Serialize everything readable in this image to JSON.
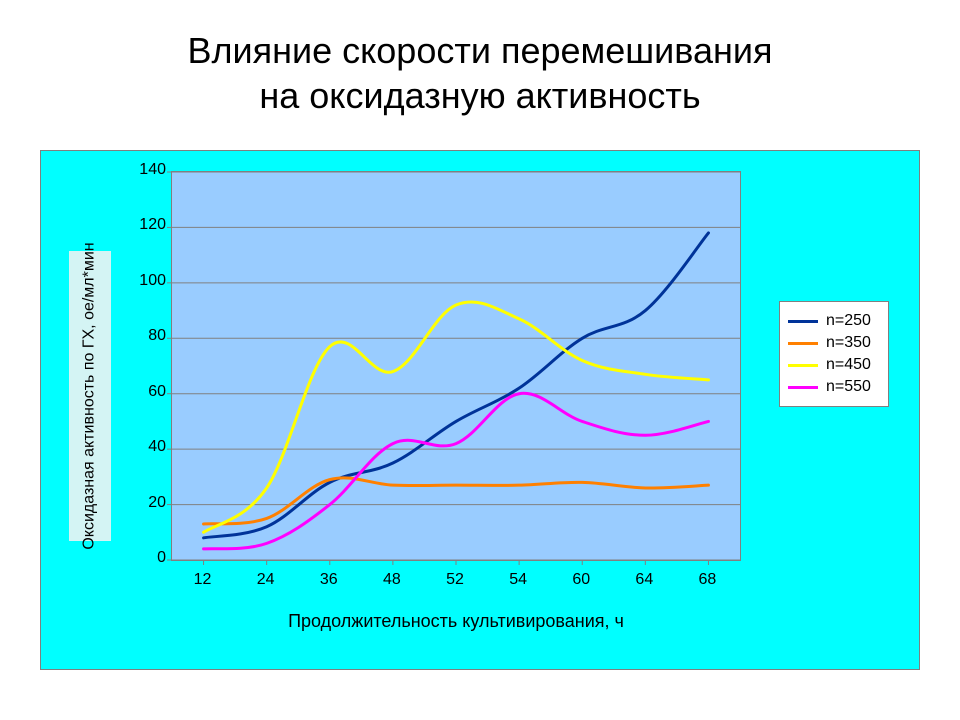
{
  "title_line1": "Влияние скорости перемешивания",
  "title_line2": "на оксидазную активность",
  "chart": {
    "type": "line",
    "background_outer": "#00ffff",
    "background_plot": "#99ccff",
    "grid_color": "#808080",
    "border_color": "#7f7f7f",
    "ylabel": "Оксидазная активность по ГХ, ое/мл*мин",
    "xlabel": "Продолжительность культивирования, ч",
    "ylim": [
      0,
      140
    ],
    "ytick_step": 20,
    "yticks": [
      0,
      20,
      40,
      60,
      80,
      100,
      120,
      140
    ],
    "x_categories": [
      "12",
      "24",
      "36",
      "48",
      "52",
      "54",
      "60",
      "64",
      "68"
    ],
    "line_width": 3,
    "series": [
      {
        "name": "n=250",
        "color": "#003399",
        "values": [
          8,
          12,
          28,
          35,
          50,
          62,
          80,
          90,
          118
        ]
      },
      {
        "name": "n=350",
        "color": "#ff8000",
        "values": [
          13,
          15,
          29,
          27,
          27,
          27,
          28,
          26,
          27
        ]
      },
      {
        "name": "n=450",
        "color": "#ffff00",
        "values": [
          10,
          26,
          77,
          68,
          92,
          87,
          72,
          67,
          65
        ]
      },
      {
        "name": "n=550",
        "color": "#ff00ff",
        "values": [
          4,
          6,
          20,
          42,
          42,
          60,
          50,
          45,
          50
        ]
      }
    ],
    "label_fontsize": 16,
    "axis_fontsize": 18,
    "title_fontsize": 36
  }
}
